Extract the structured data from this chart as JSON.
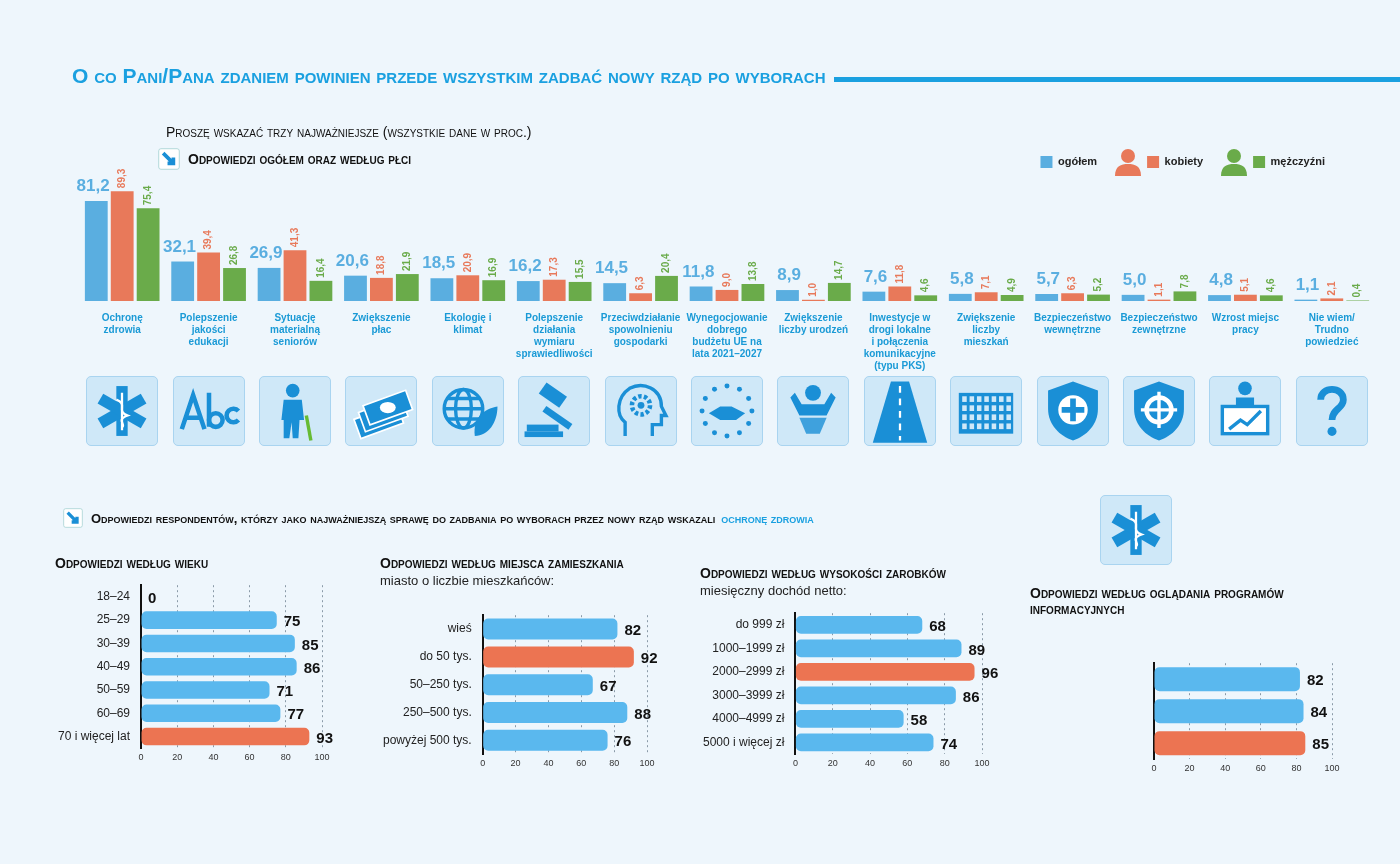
{
  "chart_data": [
    {
      "type": "bar",
      "title": "O co Pani/Pana zdaniem powinien przede wszystkim zadbać nowy rząd po wyborach",
      "subtitle": "Proszę wskazać trzy najważniejsze (wszystkie dane w proc.)",
      "annotations": [
        "Odpowiedzi ogółem oraz według płci"
      ],
      "categories": [
        "Ochronę zdrowia",
        "Polepszenie jakości edukacji",
        "Sytuację materialną seniorów",
        "Zwiększenie płac",
        "Ekologię i klimat",
        "Polepszenie działania wymiaru sprawiedliwości",
        "Przeciwdziałanie spowolnieniu gospodarki",
        "Wynegocjowanie dobrego budżetu UE na lata 2021–2027",
        "Zwiększenie liczby urodzeń",
        "Inwestycje w drogi lokalne i połączenia komunikacyjne (typu PKS)",
        "Zwiększenie liczby mieszkań",
        "Bezpieczeństwo wewnętrzne",
        "Bezpieczeństwo zewnętrzne",
        "Wzrost miejsc pracy",
        "Nie wiem/ Trudno powiedzieć"
      ],
      "series": [
        {
          "name": "ogółem",
          "color": "#5aaee0",
          "values": [
            81.2,
            32.1,
            26.9,
            20.6,
            18.5,
            16.2,
            14.5,
            11.8,
            8.9,
            7.6,
            5.8,
            5.7,
            5.0,
            4.8,
            1.1
          ],
          "value_labels": [
            "81,2",
            "32,1",
            "26,9",
            "20,6",
            "18,5",
            "16,2",
            "14,5",
            "11,8",
            "8,9",
            "7,6",
            "5,8",
            "5,7",
            "5,0",
            "4,8",
            "1,1"
          ]
        },
        {
          "name": "kobiety",
          "color": "#e8795a",
          "values": [
            89.3,
            39.4,
            41.3,
            18.8,
            20.9,
            17.3,
            6.3,
            9.0,
            1.0,
            11.8,
            7.1,
            6.3,
            1.1,
            5.1,
            2.1
          ],
          "value_labels": [
            "89,3",
            "39,4",
            "41,3",
            "18,8",
            "20,9",
            "17,3",
            "6,3",
            "9,0",
            "1,0",
            "11,8",
            "7,1",
            "6,3",
            "1,1",
            "5,1",
            "2,1"
          ]
        },
        {
          "name": "mężczyźni",
          "color": "#6aab4a",
          "values": [
            75.4,
            26.8,
            16.4,
            21.9,
            16.9,
            15.5,
            20.4,
            13.8,
            14.7,
            4.6,
            4.9,
            5.2,
            7.8,
            4.6,
            0.4
          ],
          "value_labels": [
            "75,4",
            "26,8",
            "16,4",
            "21,9",
            "16,9",
            "15,5",
            "20,4",
            "13,8",
            "14,7",
            "4,6",
            "4,9",
            "5,2",
            "7,8",
            "4,6",
            "0,4"
          ]
        }
      ],
      "legend": "top right",
      "tick_labels": "x",
      "grid": false
    },
    {
      "type": "bar",
      "orientation": "horizontal",
      "title": "Odpowiedzi według wieku",
      "annotations": [
        "Odpowiedzi respondentów, którzy jako najważniejszą sprawę do zadbania po wyborach przez nowy rząd wskazali",
        "ochronę zdrowia"
      ],
      "categories": [
        "18–24",
        "25–29",
        "30–39",
        "40–49",
        "50–59",
        "60–69",
        "70 i więcej lat"
      ],
      "values": [
        0,
        75,
        85,
        86,
        71,
        77,
        93
      ],
      "colors": [
        "#5ab8ee",
        "#5ab8ee",
        "#5ab8ee",
        "#5ab8ee",
        "#5ab8ee",
        "#5ab8ee",
        "#ec7452"
      ],
      "xlim": [
        0,
        100
      ],
      "xticks": [
        0,
        20,
        40,
        60,
        80,
        100
      ],
      "grid": "x",
      "data_labels": true
    },
    {
      "type": "bar",
      "orientation": "horizontal",
      "title": "Odpowiedzi według miejsca zamieszkania",
      "subtitle": "miasto o liczbie mieszkańców:",
      "categories": [
        "wieś",
        "do 50 tys.",
        "50–250 tys.",
        "250–500 tys.",
        "powyżej 500 tys."
      ],
      "values": [
        82,
        92,
        67,
        88,
        76
      ],
      "colors": [
        "#5ab8ee",
        "#ec7452",
        "#5ab8ee",
        "#5ab8ee",
        "#5ab8ee"
      ],
      "xlim": [
        0,
        100
      ],
      "xticks": [
        0,
        20,
        40,
        60,
        80,
        100
      ],
      "grid": "x",
      "data_labels": true
    },
    {
      "type": "bar",
      "orientation": "horizontal",
      "title": "Odpowiedzi według wysokości zarobków",
      "subtitle": "miesięczny dochód netto:",
      "categories": [
        "do 999 zł",
        "1000–1999 zł",
        "2000–2999 zł",
        "3000–3999 zł",
        "4000–4999 zł",
        "5000 i więcej zł"
      ],
      "values": [
        68,
        89,
        96,
        86,
        58,
        74
      ],
      "colors": [
        "#5ab8ee",
        "#5ab8ee",
        "#ec7452",
        "#5ab8ee",
        "#5ab8ee",
        "#5ab8ee"
      ],
      "xlim": [
        0,
        100
      ],
      "xticks": [
        0,
        20,
        40,
        60,
        80,
        100
      ],
      "grid": "x",
      "data_labels": true
    },
    {
      "type": "bar",
      "orientation": "horizontal",
      "title": "Odpowiedzi według oglądania programów informacyjnych",
      "categories": [
        null,
        null,
        null
      ],
      "values": [
        82,
        84,
        85
      ],
      "colors": [
        "#5ab8ee",
        "#5ab8ee",
        "#ec7452"
      ],
      "xlim": [
        0,
        100
      ],
      "xticks": [
        0,
        20,
        40,
        60,
        80,
        100
      ],
      "grid": "x",
      "data_labels": true
    }
  ]
}
